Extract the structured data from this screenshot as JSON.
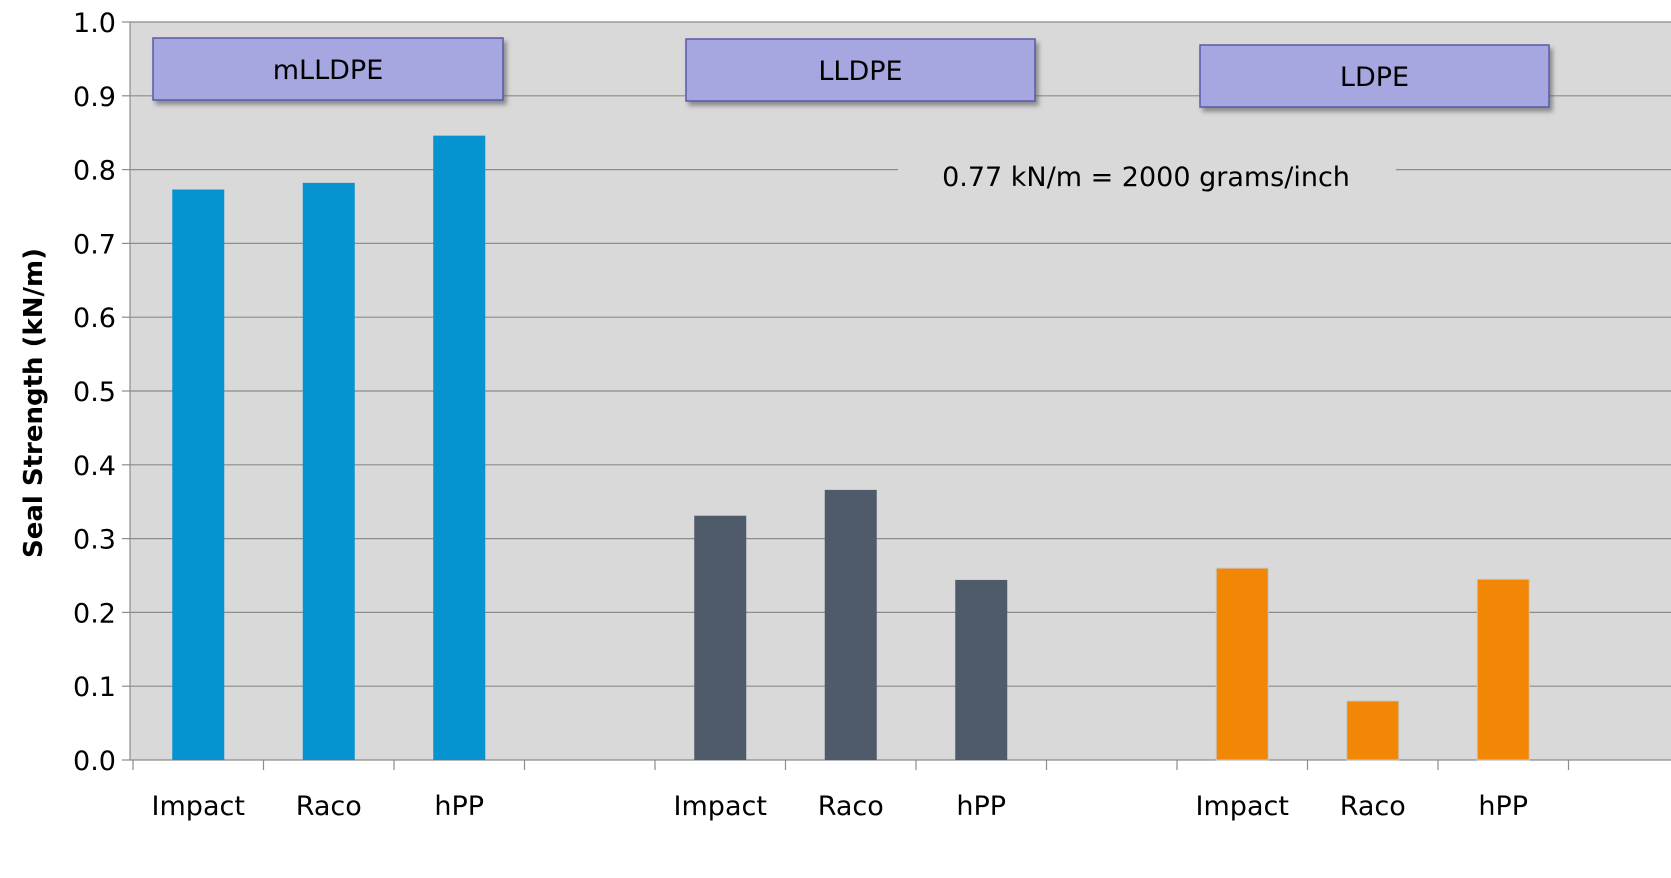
{
  "chart_data": {
    "type": "bar",
    "ylabel": "Seal Strength (kN/m)",
    "ylim": [
      0,
      1.0
    ],
    "yticks": [
      "0.0",
      "0.1",
      "0.2",
      "0.3",
      "0.4",
      "0.5",
      "0.6",
      "0.7",
      "0.8",
      "0.9",
      "1.0"
    ],
    "grid": true,
    "background_color": "#d9d9d9",
    "annotation": "0.77 kN/m = 2000 grams/inch",
    "groups": [
      {
        "name": "mLLDPE",
        "color": "#0792d0",
        "categories": [
          "Impact",
          "Raco",
          "hPP"
        ],
        "values": [
          0.773,
          0.782,
          0.846
        ]
      },
      {
        "name": "LLDPE",
        "color": "#4f5b6b",
        "categories": [
          "Impact",
          "Raco",
          "hPP"
        ],
        "values": [
          0.331,
          0.366,
          0.244
        ]
      },
      {
        "name": "LDPE",
        "color": "#f28705",
        "categories": [
          "Impact",
          "Raco",
          "hPP"
        ],
        "values": [
          0.26,
          0.08,
          0.245
        ]
      }
    ]
  }
}
